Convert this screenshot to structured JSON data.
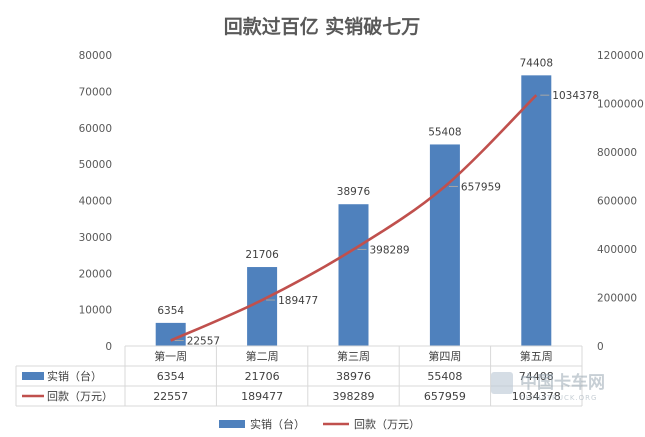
{
  "chart_data": {
    "type": "bar+line",
    "title": "回款过百亿 实销破七万",
    "categories": [
      "第一周",
      "第二周",
      "第三周",
      "第四周",
      "第五周"
    ],
    "series": [
      {
        "name": "实销（台）",
        "kind": "bar",
        "axis": "left",
        "color": "#4f81bd",
        "values": [
          6354,
          21706,
          38976,
          55408,
          74408
        ]
      },
      {
        "name": "回款（万元）",
        "kind": "line",
        "axis": "right",
        "color": "#c0504d",
        "values": [
          22557,
          189477,
          398289,
          657959,
          1034378
        ]
      }
    ],
    "y_left": {
      "min": 0,
      "max": 80000,
      "step": 10000
    },
    "y_right": {
      "min": 0,
      "max": 1200000,
      "step": 200000
    },
    "grid": false,
    "legend": "bottom",
    "data_table": true
  },
  "watermark": {
    "text": "中国卡车网",
    "sub": "CHINATRUCK.ORG"
  }
}
